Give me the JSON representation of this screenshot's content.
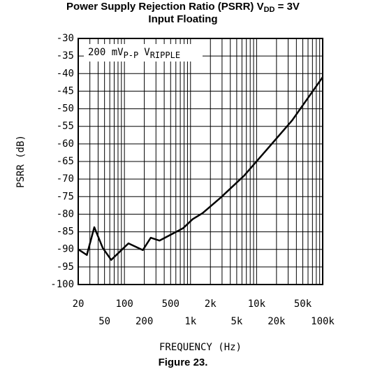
{
  "chart_data": {
    "type": "line",
    "title": "Power Supply Rejection Ratio (PSRR) V",
    "title_sub": "DD",
    "title_end": " = 3V",
    "subtitle": "Input Floating",
    "annotation": [
      {
        "text": "200 mV",
        "sub": "P-P"
      },
      {
        "text": "V",
        "sub": "RIPPLE"
      }
    ],
    "xlabel": "FREQUENCY (Hz)",
    "ylabel": "PSRR (dB)",
    "caption": "Figure 23.",
    "x": [
      20,
      27,
      35,
      47,
      63,
      115,
      190,
      250,
      340,
      770,
      1080,
      1520,
      2850,
      6500,
      14000,
      34500,
      100000
    ],
    "values": [
      -90,
      -91.6,
      -83.7,
      -89.6,
      -93,
      -88.3,
      -90.2,
      -86.7,
      -87.5,
      -84,
      -81.4,
      -79.7,
      -75.3,
      -69,
      -61.8,
      -53.3,
      -41
    ],
    "color": "#000000",
    "xscale": "log",
    "xlim": [
      20,
      100000
    ],
    "xticks": [
      20,
      50,
      100,
      200,
      500,
      {
        "value": 1000,
        "label": "1k"
      },
      {
        "value": 2000,
        "label": "2k"
      },
      {
        "value": 5000,
        "label": "5k"
      },
      {
        "value": 10000,
        "label": "10k"
      },
      {
        "value": 20000,
        "label": "20k"
      },
      {
        "value": 50000,
        "label": "50k"
      },
      {
        "value": 100000,
        "label": "100k"
      }
    ],
    "xgrid": [
      20,
      30,
      40,
      50,
      60,
      70,
      80,
      90,
      100,
      200,
      300,
      400,
      500,
      600,
      700,
      800,
      900,
      1000,
      2000,
      3000,
      4000,
      5000,
      6000,
      7000,
      8000,
      9000,
      10000,
      20000,
      30000,
      40000,
      50000,
      60000,
      70000,
      80000,
      90000,
      100000
    ],
    "ylim": [
      -100,
      -30
    ],
    "yticks": [
      -100,
      -95,
      -90,
      -85,
      -80,
      -75,
      -70,
      -65,
      -60,
      -55,
      -50,
      -45,
      -40,
      -35,
      -30
    ],
    "grid": true
  }
}
